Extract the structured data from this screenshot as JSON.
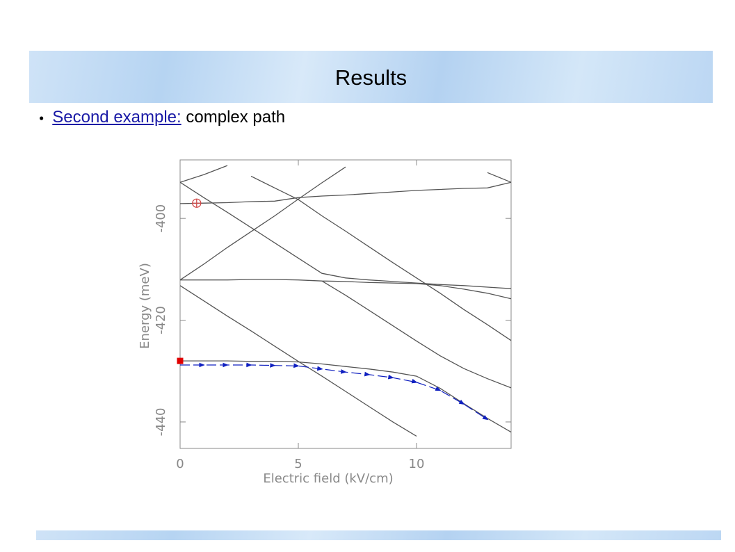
{
  "header": {
    "title": "Results"
  },
  "bullets": [
    {
      "link": "Second example:",
      "text": "complex path"
    }
  ],
  "chart_data": {
    "type": "line",
    "xlabel": "Electric field (kV/cm)",
    "ylabel": "Energy (meV)",
    "x": [
      0,
      1,
      2,
      3,
      4,
      5,
      6,
      7,
      8,
      9,
      10,
      11,
      12,
      13,
      14
    ],
    "xlim": [
      0,
      14
    ],
    "ylim": [
      -445.2,
      -388.5
    ],
    "xticks": [
      0,
      5,
      10
    ],
    "yticks": [
      -400,
      -420,
      -440
    ],
    "series": [
      {
        "color": "#555555",
        "values": [
          -392.9,
          -391.4,
          -389.6,
          null,
          null,
          null,
          null,
          null,
          null,
          null,
          null,
          null,
          null,
          null,
          null
        ]
      },
      {
        "color": "#555555",
        "values": [
          -412.1,
          -409.0,
          -405.7,
          -402.6,
          -399.5,
          -396.2,
          -393.0,
          -389.9,
          null,
          null,
          null,
          null,
          null,
          null,
          null
        ]
      },
      {
        "color": "#555555",
        "values": [
          -397.1,
          -397.0,
          -396.9,
          -396.7,
          -396.6,
          -395.9,
          -395.6,
          -395.4,
          -395.1,
          -394.8,
          -394.5,
          -394.3,
          -394.1,
          -394.0,
          -392.9
        ]
      },
      {
        "color": "#555555",
        "values": [
          -392.9,
          -395.9,
          -398.8,
          -401.8,
          -404.8,
          -407.8,
          -410.8,
          -411.7,
          -412.1,
          -412.4,
          -412.7,
          -413.0,
          -413.2,
          -413.5,
          -413.8
        ]
      },
      {
        "color": "#555555",
        "values": [
          -412.1,
          -412.1,
          -412.1,
          -412.0,
          -412.0,
          -412.1,
          -412.3,
          -412.4,
          -412.6,
          -412.7,
          -412.8,
          -413.2,
          -413.9,
          -414.7,
          -415.8
        ]
      },
      {
        "color": "#555555",
        "values": [
          -413.2,
          -416.2,
          -419.2,
          -422.1,
          -425.1,
          -428.1,
          -431.0,
          -434.0,
          -437.0,
          -440.0,
          -442.8,
          null,
          null,
          null,
          null
        ]
      },
      {
        "color": "#555555",
        "values": [
          null,
          null,
          null,
          -391.7,
          -394.0,
          -396.3,
          -399.5,
          -402.5,
          -405.6,
          -408.7,
          -411.7,
          -414.7,
          -417.9,
          -420.9,
          -424.0
        ]
      },
      {
        "color": "#555555",
        "values": [
          -428.0,
          -428.0,
          -428.0,
          -428.1,
          -428.1,
          -428.2,
          -428.6,
          -429.1,
          -429.6,
          -430.2,
          -431.0,
          -433.4,
          -436.4,
          -439.3,
          -442.0
        ]
      },
      {
        "color": "#555555",
        "values": [
          null,
          null,
          null,
          null,
          null,
          null,
          -412.3,
          -415.1,
          -418.1,
          -421.1,
          -424.1,
          -427.0,
          -429.5,
          -431.5,
          -433.3
        ]
      },
      {
        "color": "#555555",
        "values": [
          null,
          null,
          null,
          null,
          null,
          null,
          null,
          null,
          null,
          null,
          null,
          null,
          null,
          -391.0,
          -392.9
        ]
      },
      {
        "color": "#1020c0",
        "style": "dashed-arrows",
        "values": [
          -428.8,
          -428.8,
          -428.8,
          -428.8,
          -428.9,
          -429.0,
          -429.6,
          -430.2,
          -430.7,
          -431.3,
          -432.2,
          -433.8,
          -436.5,
          -439.5,
          null
        ]
      }
    ],
    "markers": [
      {
        "x": 0,
        "y": -428,
        "color": "#e00000",
        "shape": "square"
      },
      {
        "x": 0.7,
        "y": -397,
        "color": "#d04848",
        "shape": "circle-plus"
      }
    ]
  }
}
